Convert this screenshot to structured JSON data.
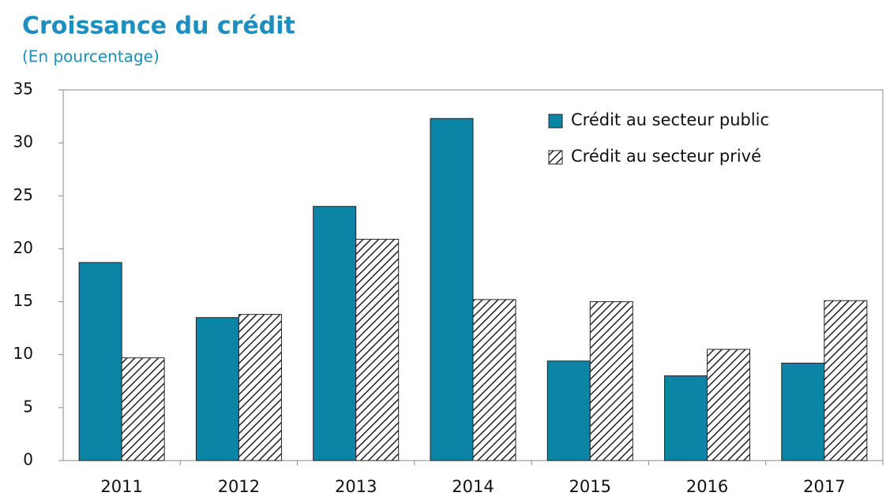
{
  "chart_data": {
    "type": "bar",
    "title": "Croissance du crédit",
    "subtitle": "(En pourcentage)",
    "categories": [
      "2011",
      "2012",
      "2013",
      "2014",
      "2015",
      "2016",
      "2017"
    ],
    "series": [
      {
        "name": "Crédit au secteur public",
        "color": "#0b84a5",
        "pattern": "solid",
        "values": [
          18.7,
          13.5,
          24.0,
          32.3,
          9.4,
          8.0,
          9.2
        ]
      },
      {
        "name": "Crédit au secteur privé",
        "color": "#ffffff",
        "pattern": "hatch",
        "values": [
          9.7,
          13.8,
          20.9,
          15.2,
          15.0,
          10.5,
          15.1
        ]
      }
    ],
    "ylim": [
      0,
      35
    ],
    "yticks": [
      0,
      5,
      10,
      15,
      20,
      25,
      30,
      35
    ],
    "grid": false,
    "legend": "upper right"
  }
}
